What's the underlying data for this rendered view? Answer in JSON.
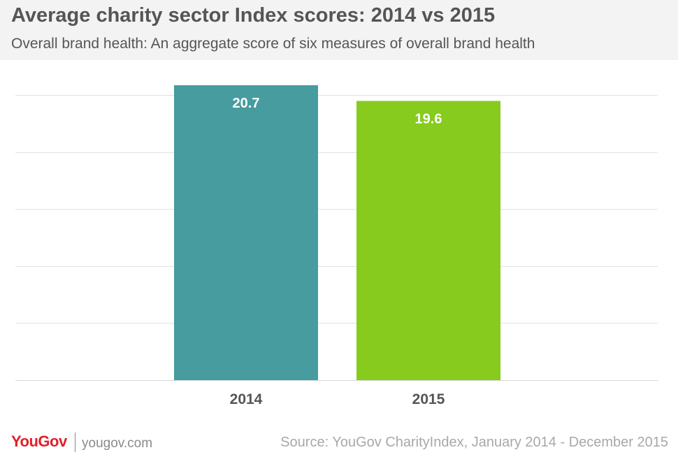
{
  "header": {
    "title": "Average charity sector Index scores: 2014 vs 2015",
    "subtitle": "Overall brand health: An aggregate score of six measures of overall brand health"
  },
  "chart_data": {
    "type": "bar",
    "title": "Average charity sector Index scores: 2014 vs 2015",
    "subtitle": "Overall brand health: An aggregate score of six measures of overall brand health",
    "categories": [
      "2014",
      "2015"
    ],
    "values": [
      20.7,
      19.6
    ],
    "value_labels": [
      "20.7",
      "19.6"
    ],
    "colors": [
      "#469c9e",
      "#86cb1e"
    ],
    "xlabel": "",
    "ylabel": "",
    "ylim": [
      0,
      20.7
    ],
    "gridlines": [
      0,
      4,
      8,
      12,
      16,
      20
    ],
    "grid": true,
    "legend": "none"
  },
  "footer": {
    "logo": "YouGov",
    "site": "yougov.com",
    "source": "Source: YouGov CharityIndex, January 2014 - December 2015"
  },
  "colors": {
    "header_bg": "#f3f3f3",
    "title_text": "#555555",
    "gridline": "#e2e2e2",
    "brand_red": "#e0202a"
  }
}
